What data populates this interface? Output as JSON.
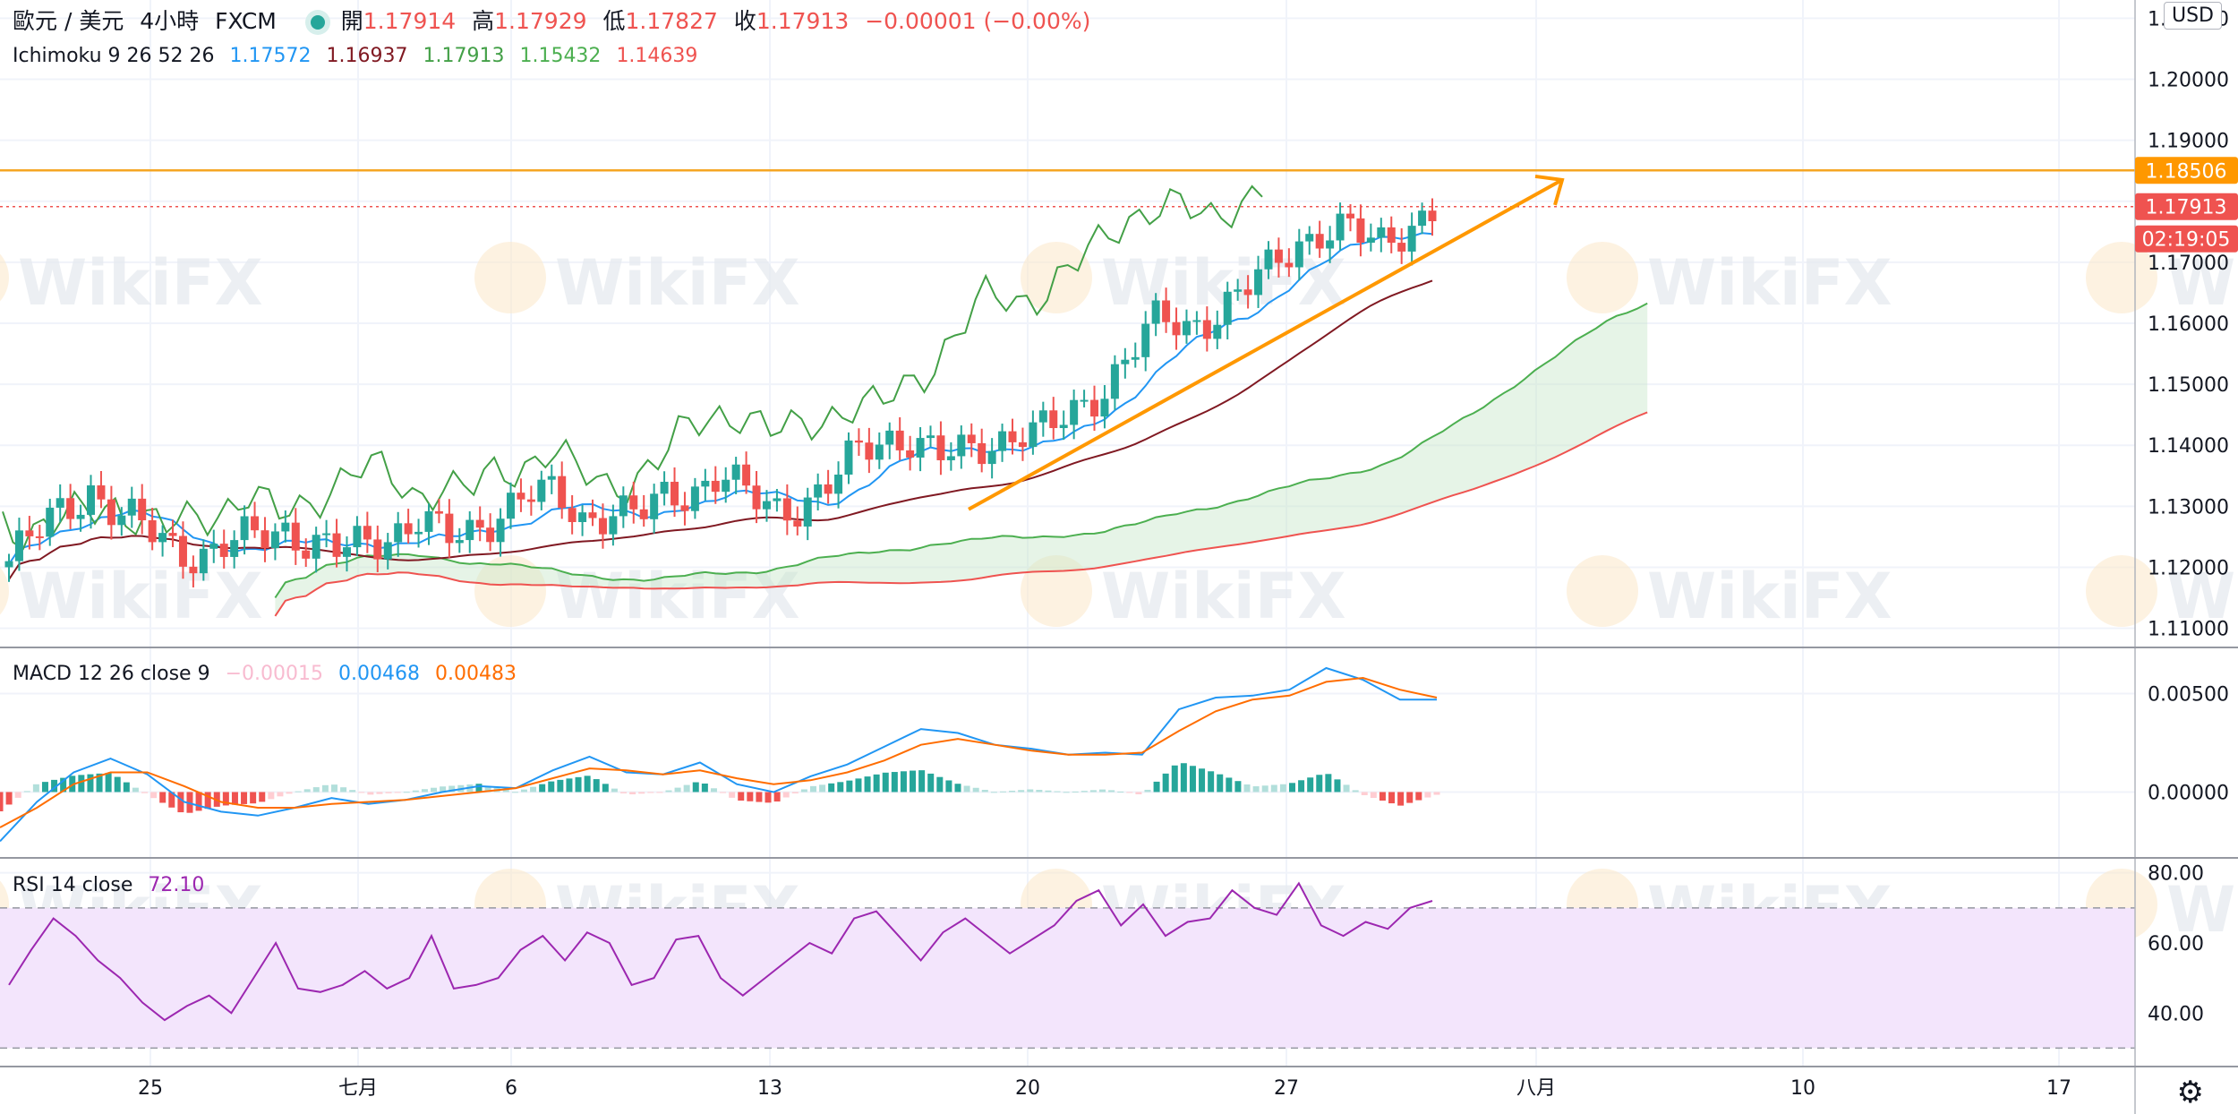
{
  "header": {
    "symbol": "歐元 / 美元",
    "interval": "4小時",
    "broker": "FXCM",
    "open_label": "開",
    "open": "1.17914",
    "high_label": "高",
    "high": "1.17929",
    "low_label": "低",
    "low": "1.17827",
    "close_label": "收",
    "close": "1.17913",
    "change": "−0.00001 (−0.00%)"
  },
  "ichimoku": {
    "label": "Ichimoku 9 26 52 26",
    "v1": "1.17572",
    "v2": "1.16937",
    "v3": "1.17913",
    "v4": "1.15432",
    "v5": "1.14639"
  },
  "macd_header": {
    "label": "MACD 12 26 close 9",
    "hist": "−0.00015",
    "macd": "0.00468",
    "signal": "0.00483"
  },
  "rsi_header": {
    "label": "RSI 14 close",
    "value": "72.10"
  },
  "currency_button": "USD",
  "price_axis": {
    "ticks": [
      "1.21000",
      "1.20000",
      "1.19000",
      "1.18000",
      "1.17000",
      "1.16000",
      "1.15000",
      "1.14000",
      "1.13000",
      "1.12000",
      "1.11000"
    ],
    "level_label": "1.18506",
    "last_price_label": "1.17913",
    "countdown_label": "02:19:05"
  },
  "macd_axis": {
    "ticks": [
      "0.00500",
      "0.00000"
    ]
  },
  "rsi_axis": {
    "ticks": [
      "80.00",
      "60.00",
      "40.00"
    ]
  },
  "time_axis": {
    "labels": [
      "25",
      "七月",
      "6",
      "13",
      "20",
      "27",
      "八月",
      "10",
      "17"
    ]
  },
  "watermark": "WikiFX",
  "colors": {
    "up": "#26a69a",
    "down": "#ef5350",
    "conversion": "#2196f3",
    "base": "#801922",
    "lagging": "#43a047",
    "spanA": "#4caf50",
    "spanB": "#ef5350",
    "trend": "#ff9800",
    "macd": "#2196f3",
    "signal": "#ff6d00",
    "rsi": "#9c27b0",
    "rsi_band": "#f3e5fc"
  },
  "chart_data": [
    {
      "type": "candlestick",
      "title": "歐元 / 美元, 4小時, FXCM",
      "x": [
        "25",
        "七月",
        "6",
        "13",
        "20",
        "27",
        "八月",
        "10",
        "17"
      ],
      "ylim": [
        1.107,
        1.213
      ],
      "close_path": [
        1.121,
        1.125,
        1.13,
        1.133,
        1.128,
        1.126,
        1.124,
        1.122,
        1.123,
        1.125,
        1.127,
        1.124,
        1.122,
        1.124,
        1.126,
        1.128,
        1.124,
        1.126,
        1.13,
        1.132,
        1.131,
        1.128,
        1.13,
        1.128,
        1.131,
        1.133,
        1.136,
        1.131,
        1.129,
        1.131,
        1.134,
        1.138,
        1.141,
        1.142,
        1.138,
        1.138,
        1.141,
        1.143,
        1.142,
        1.145,
        1.15,
        1.156,
        1.16,
        1.159,
        1.162,
        1.165,
        1.168,
        1.173,
        1.176,
        1.175,
        1.172,
        1.176,
        1.179
      ],
      "key_level": 1.18506,
      "last_price": 1.17913,
      "trendline": [
        [
          1.1295,
          "start"
        ],
        [
          1.1835,
          "end"
        ]
      ]
    },
    {
      "type": "line",
      "title": "MACD 12 26 close 9",
      "series": [
        {
          "name": "MACD",
          "values": [
            -0.0025,
            -0.0005,
            0.001,
            0.0017,
            0.0009,
            -0.0005,
            -0.001,
            -0.0012,
            -0.0008,
            -0.0003,
            -0.0006,
            -0.0004,
            0.0,
            0.0003,
            0.0002,
            0.0011,
            0.0018,
            0.001,
            0.0009,
            0.0015,
            0.0004,
            0.0,
            0.0008,
            0.0014,
            0.0023,
            0.0032,
            0.003,
            0.0024,
            0.0022,
            0.0019,
            0.002,
            0.0019,
            0.0042,
            0.0048,
            0.0049,
            0.0052,
            0.0063,
            0.0057,
            0.0047,
            0.0047
          ]
        },
        {
          "name": "Signal",
          "values": [
            -0.0018,
            -0.0008,
            0.0004,
            0.001,
            0.001,
            0.0003,
            -0.0005,
            -0.0008,
            -0.0008,
            -0.0006,
            -0.0005,
            -0.0004,
            -0.0002,
            0.0,
            0.0002,
            0.0007,
            0.0012,
            0.0011,
            0.0009,
            0.0011,
            0.0007,
            0.0004,
            0.0006,
            0.001,
            0.0016,
            0.0024,
            0.0027,
            0.0024,
            0.0021,
            0.0019,
            0.0019,
            0.002,
            0.0031,
            0.0041,
            0.0047,
            0.0049,
            0.0056,
            0.0058,
            0.0052,
            0.0048
          ]
        }
      ],
      "ylim": [
        -0.0033,
        0.0073
      ]
    },
    {
      "type": "line",
      "title": "RSI 14 close",
      "series": [
        {
          "name": "RSI",
          "values": [
            48,
            58,
            67,
            62,
            55,
            50,
            43,
            38,
            42,
            45,
            40,
            50,
            60,
            47,
            46,
            48,
            52,
            47,
            50,
            62,
            47,
            48,
            50,
            58,
            62,
            55,
            63,
            60,
            48,
            50,
            61,
            62,
            50,
            45,
            50,
            55,
            60,
            57,
            67,
            69,
            62,
            55,
            63,
            67,
            62,
            57,
            61,
            65,
            72,
            75,
            65,
            71,
            62,
            66,
            67,
            75,
            70,
            68,
            77,
            65,
            62,
            66,
            64,
            70,
            72
          ]
        }
      ],
      "bands": [
        30,
        70
      ],
      "ylim": [
        25,
        84
      ]
    }
  ]
}
